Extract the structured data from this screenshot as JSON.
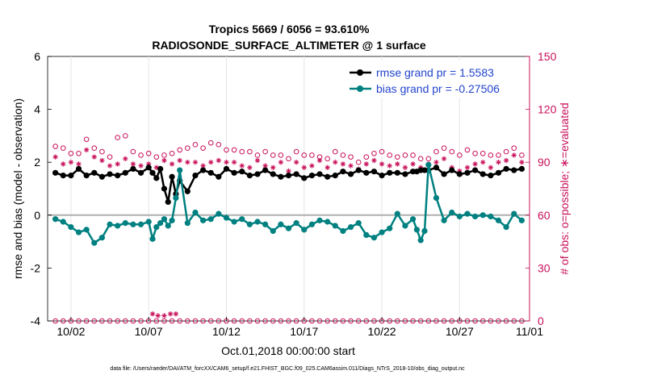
{
  "chart_data": {
    "type": "line",
    "title": "Tropics 5669 / 6056 = 93.610%",
    "subtitle": "RADIOSONDE_SURFACE_ALTIMETER @ 1 surface",
    "xlabel": "Oct.01,2018 00:00:00 start",
    "ylabel": "rmse and bias (model - observation)",
    "ylabel_right": "# of obs: o=possible; ∗=evaluated",
    "ylim": [
      -4,
      6
    ],
    "ylim_right": [
      0,
      150
    ],
    "yticks": [
      "-4",
      "-2",
      "0",
      "2",
      "4",
      "6"
    ],
    "yticks_right": [
      "0",
      "30",
      "60",
      "90",
      "120",
      "150"
    ],
    "xlim": [
      0.5,
      31.5
    ],
    "xticks": [
      {
        "value": 2,
        "label": "10/02"
      },
      {
        "value": 7,
        "label": "10/07"
      },
      {
        "value": 12,
        "label": "10/12"
      },
      {
        "value": 17,
        "label": "10/17"
      },
      {
        "value": 22,
        "label": "10/22"
      },
      {
        "value": 27,
        "label": "10/27"
      },
      {
        "value": 32,
        "label": "11/01"
      }
    ],
    "legend": {
      "position": "top-right",
      "entries": [
        "rmse grand pr = 1.5583",
        "bias grand pr = -0.27506"
      ]
    },
    "footer": "data file: /Users/raeder/DAI/ATM_forcXX/CAM6_setup/f.e21.FHIST_BGC.f09_025.CAM6assim.011/Diags_NTrS_2018-10/obs_diag_output.nc",
    "series": [
      {
        "name": "rmse",
        "color": "#000000",
        "x": [
          1,
          1.5,
          2,
          2.5,
          3,
          3.5,
          4,
          4.5,
          5,
          5.5,
          6,
          6.5,
          7,
          7.25,
          7.5,
          7.75,
          8,
          8.25,
          8.5,
          8.75,
          9,
          9.5,
          10,
          10.5,
          11,
          11.5,
          12,
          12.5,
          13,
          13.5,
          14,
          14.5,
          15,
          15.5,
          16,
          16.5,
          17,
          17.5,
          18,
          18.5,
          19,
          19.5,
          20,
          20.5,
          21,
          21.5,
          22,
          22.5,
          23,
          23.5,
          24,
          24.25,
          24.5,
          24.75,
          25,
          25.5,
          26,
          26.5,
          27,
          27.5,
          28,
          28.5,
          29,
          29.5,
          30,
          30.5,
          31
        ],
        "values": [
          1.6,
          1.5,
          1.5,
          1.75,
          1.5,
          1.6,
          1.45,
          1.55,
          1.5,
          1.6,
          1.75,
          1.6,
          1.8,
          1.6,
          1.4,
          1.75,
          1.0,
          0.5,
          1.45,
          0.8,
          1.3,
          0.9,
          1.5,
          1.7,
          1.6,
          1.45,
          1.75,
          1.6,
          1.65,
          1.5,
          1.55,
          1.7,
          1.55,
          1.45,
          1.5,
          1.55,
          1.4,
          1.5,
          1.55,
          1.45,
          1.5,
          1.65,
          1.55,
          1.7,
          1.6,
          1.65,
          1.5,
          1.6,
          1.6,
          1.55,
          1.65,
          1.65,
          1.7,
          1.7,
          1.7,
          1.8,
          1.55,
          1.7,
          1.55,
          1.6,
          1.7,
          1.55,
          1.5,
          1.6,
          1.75,
          1.7,
          1.75
        ]
      },
      {
        "name": "bias",
        "color": "#008080",
        "x": [
          1,
          1.5,
          2,
          2.5,
          3,
          3.5,
          4,
          4.5,
          5,
          5.5,
          6,
          6.5,
          7,
          7.25,
          7.5,
          7.75,
          8,
          8.25,
          8.5,
          8.75,
          9,
          9.5,
          10,
          10.5,
          11,
          11.5,
          12,
          12.5,
          13,
          13.5,
          14,
          14.5,
          15,
          15.5,
          16,
          16.5,
          17,
          17.5,
          18,
          18.5,
          19,
          19.5,
          20,
          20.5,
          21,
          21.5,
          22,
          22.5,
          23,
          23.5,
          24,
          24.25,
          24.5,
          24.75,
          25,
          25.5,
          26,
          26.5,
          27,
          27.5,
          28,
          28.5,
          29,
          29.5,
          30,
          30.5,
          31
        ],
        "values": [
          -0.15,
          -0.25,
          -0.45,
          -0.65,
          -0.55,
          -1.05,
          -0.85,
          -0.35,
          -0.4,
          -0.3,
          -0.35,
          -0.35,
          -0.25,
          -0.9,
          -0.45,
          -0.3,
          -0.15,
          -0.4,
          -0.2,
          0.65,
          1.7,
          -0.3,
          0.1,
          -0.2,
          -0.15,
          0.05,
          -0.1,
          -0.25,
          -0.15,
          -0.35,
          -0.25,
          -0.35,
          -0.6,
          -0.35,
          -0.5,
          -0.3,
          -0.55,
          -0.35,
          -0.2,
          -0.25,
          -0.4,
          -0.6,
          -0.45,
          -0.3,
          -0.75,
          -0.85,
          -0.65,
          -0.5,
          0.05,
          -0.4,
          -0.15,
          -0.55,
          -0.95,
          -0.6,
          1.9,
          0.65,
          -0.2,
          0.1,
          -0.05,
          0.05,
          -0.05,
          0.0,
          -0.05,
          -0.2,
          -0.45,
          0.05,
          -0.2
        ]
      },
      {
        "name": "obs possible (o)",
        "axis": "right",
        "color": "#c8105a",
        "x": [
          1,
          1.5,
          2,
          2.5,
          3,
          3.5,
          4,
          4.5,
          5,
          5.5,
          6,
          6.5,
          7,
          7.5,
          8,
          8.5,
          9,
          9.5,
          10,
          10.5,
          11,
          11.5,
          12,
          12.5,
          13,
          13.5,
          14,
          14.5,
          15,
          15.5,
          16,
          16.5,
          17,
          17.5,
          18,
          18.5,
          19,
          19.5,
          20,
          20.5,
          21,
          21.5,
          22,
          22.5,
          23,
          23.5,
          24,
          24.5,
          25,
          25.5,
          26,
          26.5,
          27,
          27.5,
          28,
          28.5,
          29,
          29.5,
          30,
          30.5,
          31
        ],
        "values": [
          99,
          98,
          95,
          95,
          103,
          98,
          96,
          93,
          104,
          105,
          96,
          94,
          95,
          93,
          94,
          95,
          97,
          98,
          100,
          98,
          101,
          100,
          97,
          97,
          96,
          96,
          94,
          96,
          94,
          94,
          92,
          96,
          94,
          94,
          93,
          92,
          96,
          94,
          93,
          90,
          93,
          95,
          96,
          94,
          93,
          94,
          94,
          92,
          92,
          96,
          98,
          96,
          94,
          97,
          95,
          95,
          94,
          94,
          96,
          98,
          94
        ]
      },
      {
        "name": "obs evaluated (*)",
        "axis": "right",
        "color": "#c8105a",
        "x": [
          1,
          1.5,
          2,
          2.5,
          3,
          3.5,
          4,
          4.5,
          5,
          5.5,
          6,
          6.5,
          7,
          7.5,
          8,
          8.5,
          9,
          9.5,
          10,
          10.5,
          11,
          11.5,
          12,
          12.5,
          13,
          13.5,
          14,
          14.5,
          15,
          15.5,
          16,
          16.5,
          17,
          17.5,
          18,
          18.5,
          19,
          19.5,
          20,
          20.5,
          21,
          21.5,
          22,
          22.5,
          23,
          23.5,
          24,
          24.5,
          25,
          25.5,
          26,
          26.5,
          27,
          27.5,
          28,
          28.5,
          29,
          29.5,
          30,
          30.5,
          31
        ],
        "values": [
          93,
          89,
          90,
          89,
          97,
          93,
          91,
          88,
          89,
          92,
          89,
          88,
          89,
          87,
          91,
          89,
          91,
          90,
          90,
          88,
          90,
          91,
          90,
          90,
          88,
          87,
          91,
          88,
          87,
          90,
          85,
          90,
          87,
          88,
          91,
          87,
          90,
          89,
          88,
          86,
          89,
          91,
          89,
          88,
          89,
          87,
          89,
          87,
          89,
          90,
          92,
          87,
          85,
          87,
          89,
          90,
          87,
          90,
          91,
          94,
          90
        ]
      },
      {
        "name": "obs possible near zero (o)",
        "axis": "right",
        "color": "#c8105a",
        "x": [
          1,
          1.5,
          2,
          2.5,
          3,
          3.5,
          4,
          4.5,
          5,
          5.5,
          6,
          6.5,
          7,
          7.5,
          8,
          8.5,
          9,
          9.5,
          10,
          10.5,
          11,
          11.5,
          12,
          12.5,
          13,
          13.5,
          14,
          14.5,
          15,
          15.5,
          16,
          16.5,
          17,
          17.5,
          18,
          18.5,
          19,
          19.5,
          20,
          20.5,
          21,
          21.5,
          22,
          22.5,
          23,
          23.5,
          24,
          24.5,
          25,
          25.5,
          26,
          26.5,
          27,
          27.5,
          28,
          28.5,
          29,
          29.5,
          30,
          30.5,
          31
        ],
        "values": [
          0,
          0,
          0,
          0,
          0,
          0,
          0,
          0,
          0,
          0,
          0,
          0,
          0,
          0,
          0,
          0,
          0,
          0,
          0,
          0,
          0,
          0,
          0,
          0,
          0,
          0,
          0,
          0,
          0,
          0,
          0,
          0,
          0,
          0,
          0,
          0,
          0,
          0,
          0,
          0,
          0,
          0,
          0,
          0,
          0,
          0,
          0,
          0,
          0,
          0,
          0,
          0,
          0,
          0,
          0,
          0,
          0,
          0,
          0,
          0,
          0
        ]
      },
      {
        "name": "obs rejected spike (*)",
        "axis": "right",
        "color": "#c8105a",
        "x": [
          7.25,
          7.6,
          8.0,
          8.4,
          8.75
        ],
        "values": [
          4,
          3,
          3,
          4,
          4
        ]
      }
    ]
  }
}
